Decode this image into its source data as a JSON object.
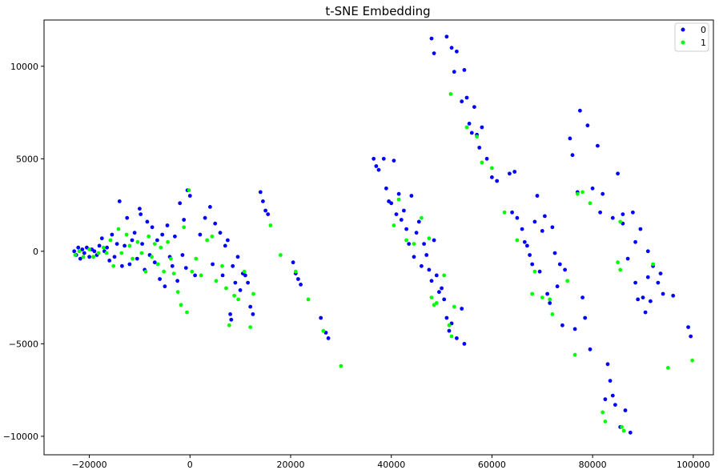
{
  "chart_data": {
    "type": "scatter",
    "title": "t-SNE Embedding",
    "xlabel": "",
    "ylabel": "",
    "xlim": [
      -29000,
      104000
    ],
    "ylim": [
      -11000,
      12500
    ],
    "xticks": [
      -20000,
      0,
      20000,
      40000,
      60000,
      80000,
      100000
    ],
    "xtick_labels": [
      "−20000",
      "0",
      "20000",
      "40000",
      "60000",
      "80000",
      "100000"
    ],
    "yticks": [
      -10000,
      -5000,
      0,
      5000,
      10000
    ],
    "ytick_labels": [
      "−10000",
      "−5000",
      "0",
      "5000",
      "10000"
    ],
    "grid": false,
    "legend_position": "top-right",
    "series": [
      {
        "name": "0",
        "color": "#0000ff",
        "points": [
          [
            -23000,
            0
          ],
          [
            -22600,
            -200
          ],
          [
            -22200,
            200
          ],
          [
            -21800,
            -400
          ],
          [
            -21400,
            100
          ],
          [
            -21000,
            -100
          ],
          [
            -20500,
            200
          ],
          [
            -20000,
            -300
          ],
          [
            -19500,
            100
          ],
          [
            -19000,
            0
          ],
          [
            -18500,
            -200
          ],
          [
            -18000,
            300
          ],
          [
            -17500,
            700
          ],
          [
            -17000,
            0
          ],
          [
            -16500,
            200
          ],
          [
            -16000,
            -500
          ],
          [
            -15500,
            900
          ],
          [
            -15000,
            -300
          ],
          [
            -14500,
            400
          ],
          [
            -14000,
            2700
          ],
          [
            -13500,
            -800
          ],
          [
            -13000,
            300
          ],
          [
            -12500,
            1800
          ],
          [
            -12000,
            -700
          ],
          [
            -11500,
            600
          ],
          [
            -11000,
            1000
          ],
          [
            -10500,
            -400
          ],
          [
            -10000,
            2300
          ],
          [
            -9800,
            2000
          ],
          [
            -9500,
            400
          ],
          [
            -9000,
            -1000
          ],
          [
            -8500,
            1600
          ],
          [
            -8000,
            -200
          ],
          [
            -7500,
            1300
          ],
          [
            -7000,
            -600
          ],
          [
            -6500,
            600
          ],
          [
            -6000,
            -1500
          ],
          [
            -5500,
            900
          ],
          [
            -5000,
            -1900
          ],
          [
            -4500,
            1400
          ],
          [
            -4000,
            -300
          ],
          [
            -3500,
            -800
          ],
          [
            -3000,
            800
          ],
          [
            -2500,
            -1600
          ],
          [
            -2000,
            2600
          ],
          [
            -1500,
            -200
          ],
          [
            -1200,
            1700
          ],
          [
            -800,
            -900
          ],
          [
            -500,
            3300
          ],
          [
            0,
            3000
          ],
          [
            1000,
            -1300
          ],
          [
            2000,
            900
          ],
          [
            3000,
            1800
          ],
          [
            4000,
            2400
          ],
          [
            4500,
            -700
          ],
          [
            5000,
            1500
          ],
          [
            6000,
            1000
          ],
          [
            6500,
            -1300
          ],
          [
            7000,
            300
          ],
          [
            7500,
            600
          ],
          [
            8000,
            -3400
          ],
          [
            8200,
            -3700
          ],
          [
            8500,
            -800
          ],
          [
            9000,
            -1700
          ],
          [
            9500,
            -300
          ],
          [
            10000,
            -2100
          ],
          [
            10500,
            -1200
          ],
          [
            11000,
            -1300
          ],
          [
            11500,
            -1700
          ],
          [
            12000,
            -3000
          ],
          [
            12500,
            -3400
          ],
          [
            14000,
            3200
          ],
          [
            14500,
            2700
          ],
          [
            15000,
            2200
          ],
          [
            15500,
            2000
          ],
          [
            20500,
            -600
          ],
          [
            21000,
            -1200
          ],
          [
            21500,
            -1500
          ],
          [
            22000,
            -1800
          ],
          [
            26000,
            -3600
          ],
          [
            27000,
            -4400
          ],
          [
            27500,
            -4700
          ],
          [
            36500,
            5000
          ],
          [
            37000,
            4600
          ],
          [
            37500,
            4400
          ],
          [
            38500,
            5000
          ],
          [
            39000,
            3400
          ],
          [
            39500,
            2700
          ],
          [
            40000,
            2600
          ],
          [
            40500,
            4900
          ],
          [
            41000,
            2000
          ],
          [
            41500,
            3100
          ],
          [
            42000,
            1700
          ],
          [
            42500,
            2200
          ],
          [
            43000,
            1200
          ],
          [
            43500,
            400
          ],
          [
            44000,
            3000
          ],
          [
            44500,
            -300
          ],
          [
            45000,
            1000
          ],
          [
            45500,
            1600
          ],
          [
            46000,
            -800
          ],
          [
            46500,
            400
          ],
          [
            47000,
            -200
          ],
          [
            47500,
            -1000
          ],
          [
            48000,
            -1600
          ],
          [
            48500,
            600
          ],
          [
            49000,
            -1300
          ],
          [
            49500,
            -2200
          ],
          [
            50000,
            -2000
          ],
          [
            50500,
            -2600
          ],
          [
            51000,
            -3600
          ],
          [
            51500,
            -4300
          ],
          [
            52000,
            -3900
          ],
          [
            53000,
            -4700
          ],
          [
            54000,
            -3100
          ],
          [
            54500,
            -5000
          ],
          [
            48000,
            11500
          ],
          [
            48500,
            10700
          ],
          [
            51000,
            11600
          ],
          [
            52000,
            11000
          ],
          [
            52500,
            9700
          ],
          [
            53000,
            10800
          ],
          [
            54000,
            8100
          ],
          [
            54500,
            9800
          ],
          [
            55000,
            8300
          ],
          [
            55500,
            6900
          ],
          [
            56000,
            6400
          ],
          [
            56500,
            7800
          ],
          [
            57000,
            6300
          ],
          [
            57500,
            5600
          ],
          [
            58000,
            6700
          ],
          [
            59000,
            5000
          ],
          [
            60000,
            4000
          ],
          [
            61000,
            3800
          ],
          [
            63500,
            4200
          ],
          [
            64000,
            2100
          ],
          [
            64500,
            4300
          ],
          [
            65000,
            1800
          ],
          [
            66000,
            1200
          ],
          [
            66500,
            500
          ],
          [
            67000,
            300
          ],
          [
            67500,
            -200
          ],
          [
            68000,
            -700
          ],
          [
            68500,
            1600
          ],
          [
            69000,
            3000
          ],
          [
            69500,
            -1100
          ],
          [
            70000,
            1100
          ],
          [
            70500,
            1900
          ],
          [
            71000,
            -2300
          ],
          [
            71500,
            -2800
          ],
          [
            72000,
            1300
          ],
          [
            72500,
            -100
          ],
          [
            73000,
            -1900
          ],
          [
            73500,
            -700
          ],
          [
            74000,
            -4000
          ],
          [
            74500,
            -1000
          ],
          [
            75500,
            6100
          ],
          [
            76000,
            5200
          ],
          [
            76500,
            -4200
          ],
          [
            77000,
            3200
          ],
          [
            77500,
            7600
          ],
          [
            78000,
            -2500
          ],
          [
            78500,
            -3600
          ],
          [
            79000,
            6800
          ],
          [
            79500,
            -5300
          ],
          [
            80000,
            3400
          ],
          [
            81000,
            5700
          ],
          [
            81500,
            2100
          ],
          [
            82000,
            3100
          ],
          [
            82500,
            -8000
          ],
          [
            83000,
            -6100
          ],
          [
            83500,
            -7000
          ],
          [
            84000,
            -7800
          ],
          [
            84500,
            -8300
          ],
          [
            85000,
            4200
          ],
          [
            85500,
            -9500
          ],
          [
            86000,
            2000
          ],
          [
            86500,
            -8600
          ],
          [
            87000,
            -400
          ],
          [
            87500,
            -9800
          ],
          [
            88000,
            2100
          ],
          [
            88500,
            -1700
          ],
          [
            89000,
            -2600
          ],
          [
            89500,
            1200
          ],
          [
            90000,
            -2500
          ],
          [
            90500,
            -3300
          ],
          [
            91000,
            -1400
          ],
          [
            91500,
            -2700
          ],
          [
            92000,
            -800
          ],
          [
            93000,
            -1700
          ],
          [
            93500,
            -1200
          ],
          [
            94000,
            -2300
          ],
          [
            96000,
            -2400
          ],
          [
            99000,
            -4100
          ],
          [
            99500,
            -4600
          ],
          [
            84000,
            1800
          ],
          [
            86000,
            1500
          ],
          [
            88500,
            500
          ],
          [
            91000,
            0
          ]
        ]
      },
      {
        "name": "1",
        "color": "#00ff00",
        "points": [
          [
            -22800,
            -200
          ],
          [
            -22000,
            0
          ],
          [
            -21200,
            -300
          ],
          [
            -20000,
            100
          ],
          [
            -19200,
            -300
          ],
          [
            -18200,
            -100
          ],
          [
            -17200,
            200
          ],
          [
            -16600,
            -100
          ],
          [
            -15800,
            600
          ],
          [
            -15200,
            -800
          ],
          [
            -14200,
            1200
          ],
          [
            -13600,
            -100
          ],
          [
            -12600,
            900
          ],
          [
            -12000,
            300
          ],
          [
            -11400,
            -400
          ],
          [
            -10400,
            500
          ],
          [
            -9600,
            -100
          ],
          [
            -8800,
            -1100
          ],
          [
            -8200,
            800
          ],
          [
            -7600,
            -300
          ],
          [
            -7000,
            400
          ],
          [
            -6400,
            -700
          ],
          [
            -5800,
            200
          ],
          [
            -5200,
            -1100
          ],
          [
            -4400,
            500
          ],
          [
            -3800,
            -400
          ],
          [
            -3200,
            -1200
          ],
          [
            -2400,
            -2200
          ],
          [
            -1800,
            -2900
          ],
          [
            -1200,
            1300
          ],
          [
            -600,
            -3300
          ],
          [
            -200,
            3300
          ],
          [
            400,
            -1100
          ],
          [
            1200,
            -400
          ],
          [
            2200,
            -1300
          ],
          [
            3400,
            600
          ],
          [
            4400,
            800
          ],
          [
            5200,
            -1600
          ],
          [
            6400,
            -800
          ],
          [
            7200,
            -2000
          ],
          [
            7800,
            -4000
          ],
          [
            8800,
            -2400
          ],
          [
            9600,
            -2600
          ],
          [
            10800,
            -1100
          ],
          [
            12000,
            -4100
          ],
          [
            12600,
            -2300
          ],
          [
            16000,
            1400
          ],
          [
            18000,
            -200
          ],
          [
            21000,
            -1100
          ],
          [
            23500,
            -2600
          ],
          [
            26500,
            -4300
          ],
          [
            30000,
            -6200
          ],
          [
            40500,
            1400
          ],
          [
            41500,
            2800
          ],
          [
            43000,
            600
          ],
          [
            44500,
            400
          ],
          [
            46000,
            1800
          ],
          [
            47500,
            700
          ],
          [
            48000,
            -2500
          ],
          [
            48500,
            -2900
          ],
          [
            49000,
            -2800
          ],
          [
            50500,
            -1300
          ],
          [
            51500,
            -4000
          ],
          [
            52000,
            -4600
          ],
          [
            52500,
            -3000
          ],
          [
            51800,
            8500
          ],
          [
            55000,
            6700
          ],
          [
            57000,
            6200
          ],
          [
            58000,
            4800
          ],
          [
            60000,
            4500
          ],
          [
            62500,
            2100
          ],
          [
            65000,
            600
          ],
          [
            68000,
            -2300
          ],
          [
            68500,
            -1100
          ],
          [
            70000,
            -2500
          ],
          [
            71500,
            -2600
          ],
          [
            72000,
            -3400
          ],
          [
            75000,
            -1600
          ],
          [
            76500,
            -5600
          ],
          [
            77000,
            3100
          ],
          [
            78000,
            3200
          ],
          [
            79500,
            2600
          ],
          [
            82000,
            -8700
          ],
          [
            82500,
            -9200
          ],
          [
            85000,
            -600
          ],
          [
            85500,
            -1000
          ],
          [
            85800,
            -9500
          ],
          [
            86200,
            -9700
          ],
          [
            85500,
            1600
          ],
          [
            92000,
            -700
          ],
          [
            95000,
            -6300
          ],
          [
            99800,
            -5900
          ]
        ]
      }
    ]
  }
}
